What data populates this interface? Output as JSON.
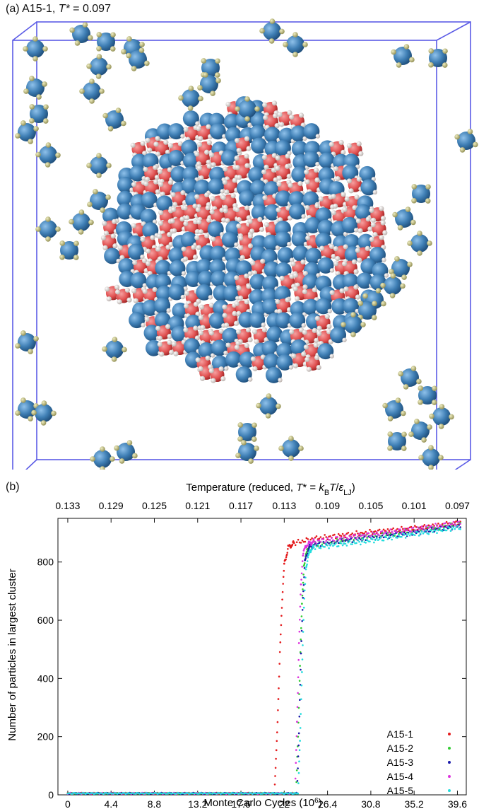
{
  "panel_a": {
    "label_prefix": "(a) A15-1, ",
    "label_var": "T*",
    "label_eq": " = 0.097",
    "colors": {
      "box_edge": "#5b5be6",
      "free_particle": "#3f7fb5",
      "ligand": "#b4b27a",
      "crystal_core": "#e05858",
      "crystal_h": "#e8e0dc"
    }
  },
  "panel_b": {
    "label": "(b)"
  },
  "chart_data": {
    "type": "scatter",
    "title": "",
    "xlabel": "Monte Carlo Cycles (10⁶)",
    "ylabel": "Number of particles in largest cluster",
    "x2label": "Temperature (reduced, T* = kBT/εLJ)",
    "xlim": [
      -1,
      40.5
    ],
    "ylim": [
      0,
      950
    ],
    "xticks": [
      "0",
      "4.4",
      "8.8",
      "13.2",
      "17.6",
      "22",
      "26.4",
      "30.8",
      "35.2",
      "39.6"
    ],
    "xtick_values": [
      0,
      4.4,
      8.8,
      13.2,
      17.6,
      22,
      26.4,
      30.8,
      35.2,
      39.6
    ],
    "x2ticks": [
      "0.133",
      "0.129",
      "0.125",
      "0.121",
      "0.117",
      "0.113",
      "0.109",
      "0.105",
      "0.101",
      "0.097"
    ],
    "yticks": [
      "0",
      "200",
      "400",
      "600",
      "800"
    ],
    "ytick_values": [
      0,
      200,
      400,
      600,
      800
    ],
    "legend_position": "bottom-right",
    "grid": false,
    "series": [
      {
        "name": "A15-1",
        "color": "#e41a1c",
        "points": [
          [
            0,
            5
          ],
          [
            21.0,
            5
          ],
          [
            21.2,
            150
          ],
          [
            21.4,
            330
          ],
          [
            21.6,
            520
          ],
          [
            21.8,
            680
          ],
          [
            22.0,
            790
          ],
          [
            22.4,
            850
          ],
          [
            23,
            865
          ],
          [
            25,
            880
          ],
          [
            30,
            900
          ],
          [
            35,
            915
          ],
          [
            40,
            935
          ]
        ]
      },
      {
        "name": "A15-2",
        "color": "#33cc33",
        "points": [
          [
            0,
            5
          ],
          [
            23.2,
            5
          ],
          [
            23.4,
            200
          ],
          [
            23.6,
            450
          ],
          [
            23.8,
            650
          ],
          [
            24.0,
            790
          ],
          [
            24.4,
            850
          ],
          [
            25,
            860
          ],
          [
            30,
            885
          ],
          [
            35,
            905
          ],
          [
            40,
            930
          ]
        ]
      },
      {
        "name": "A15-3",
        "color": "#1a1aaa",
        "points": [
          [
            0,
            5
          ],
          [
            23.3,
            5
          ],
          [
            23.5,
            220
          ],
          [
            23.7,
            480
          ],
          [
            23.9,
            680
          ],
          [
            24.1,
            800
          ],
          [
            24.5,
            850
          ],
          [
            25,
            858
          ],
          [
            30,
            880
          ],
          [
            35,
            900
          ],
          [
            40,
            925
          ]
        ]
      },
      {
        "name": "A15-4",
        "color": "#dd33dd",
        "points": [
          [
            0,
            5
          ],
          [
            23.1,
            5
          ],
          [
            23.3,
            250
          ],
          [
            23.5,
            520
          ],
          [
            23.7,
            720
          ],
          [
            23.9,
            830
          ],
          [
            24.3,
            860
          ],
          [
            25,
            870
          ],
          [
            30,
            892
          ],
          [
            35,
            912
          ],
          [
            40,
            935
          ]
        ]
      },
      {
        "name": "A15-5",
        "color": "#22dddd",
        "points": [
          [
            0,
            5
          ],
          [
            23.4,
            5
          ],
          [
            23.6,
            180
          ],
          [
            23.8,
            430
          ],
          [
            24.0,
            640
          ],
          [
            24.2,
            780
          ],
          [
            24.6,
            840
          ],
          [
            25,
            850
          ],
          [
            30,
            870
          ],
          [
            35,
            895
          ],
          [
            40,
            920
          ]
        ]
      }
    ]
  }
}
